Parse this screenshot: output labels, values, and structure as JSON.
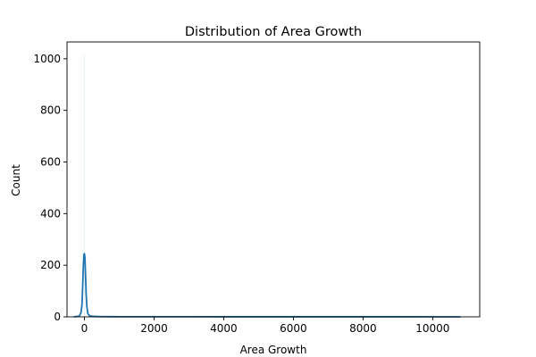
{
  "chart_data": {
    "type": "histogram",
    "title": "Distribution of Area Growth",
    "xlabel": "Area Growth",
    "ylabel": "Count",
    "xlim": [
      -500,
      11350
    ],
    "ylim": [
      0,
      1065
    ],
    "x_ticks": [
      0,
      2000,
      4000,
      6000,
      8000,
      10000
    ],
    "x_tick_labels": [
      "0",
      "2000",
      "4000",
      "6000",
      "8000",
      "10000"
    ],
    "y_ticks": [
      0,
      200,
      400,
      600,
      800,
      1000
    ],
    "y_tick_labels": [
      "0",
      "200",
      "400",
      "600",
      "800",
      "1000"
    ],
    "bars": [
      {
        "x0": -10,
        "x1": 10,
        "count": 1015
      }
    ],
    "kde": {
      "x": [
        -300,
        -150,
        -100,
        -70,
        -50,
        -30,
        -15,
        0,
        15,
        30,
        50,
        70,
        100,
        150,
        250,
        400,
        1000,
        3000,
        6000,
        9000,
        10800
      ],
      "y": [
        0,
        3,
        15,
        45,
        120,
        200,
        240,
        245,
        230,
        170,
        90,
        40,
        12,
        4,
        2,
        1,
        0.5,
        0.3,
        0.2,
        0.2,
        0.1
      ]
    },
    "colors": {
      "bar": "#1f77b4",
      "line": "#1f77b4"
    },
    "grid": false,
    "legend": "none"
  }
}
